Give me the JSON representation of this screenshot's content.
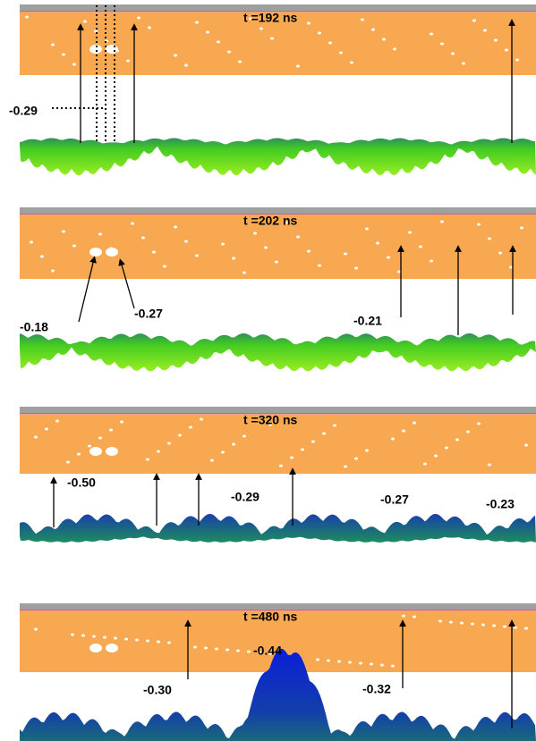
{
  "panels": [
    {
      "title": "t =192 ns",
      "labels": [
        "-0.29"
      ]
    },
    {
      "title": "t =202 ns",
      "labels": [
        "-0.18",
        "-0.27",
        "-0.21"
      ]
    },
    {
      "title": "t =320 ns",
      "labels": [
        "-0.50",
        "-0.29",
        "-0.27",
        "-0.23"
      ]
    },
    {
      "title": "t =480 ns",
      "labels": [
        "-0.30",
        "-0.44",
        "-0.32"
      ]
    }
  ]
}
